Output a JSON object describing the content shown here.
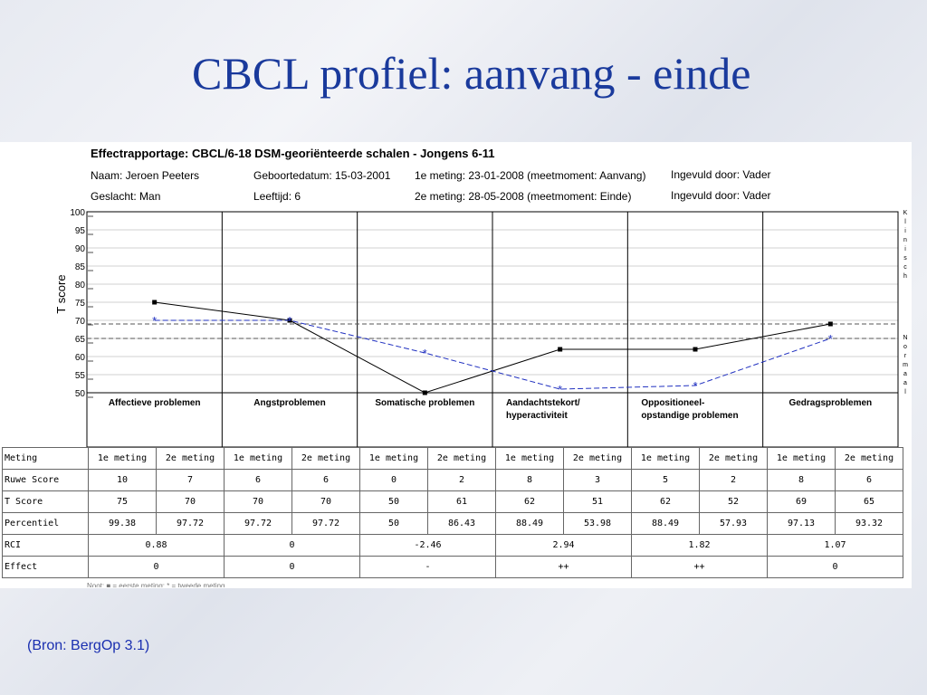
{
  "slide": {
    "title": "CBCL profiel: aanvang - einde",
    "source": "(Bron: BergOp 3.1)"
  },
  "report": {
    "title": "Effectrapportage: CBCL/6-18 DSM-georiënteerde schalen - Jongens 6-11",
    "naam": "Naam: Jeroen Peeters",
    "geboortedatum": "Geboortedatum: 15-03-2001",
    "meting1": "1e meting: 23-01-2008 (meetmoment: Aanvang)",
    "ingevuld1": "Ingevuld door: Vader",
    "geslacht": "Geslacht: Man",
    "leeftijd": "Leeftijd: 6",
    "meting2": "2e meting: 28-05-2008 (meetmoment: Einde)",
    "ingevuld2": "Ingevuld door: Vader",
    "footnote": "Noot: ■ = eerste meting; * = tweede meting"
  },
  "chart_data": {
    "type": "line",
    "ylabel": "T score",
    "ylim": [
      50,
      100
    ],
    "yticks": [
      "50",
      "55",
      "60",
      "65",
      "70",
      "75",
      "80",
      "85",
      "90",
      "95",
      "100"
    ],
    "categories": [
      "Affectieve problemen",
      "Angstproblemen",
      "Somatische problemen",
      "Aandachtstekort/ hyperactiviteit",
      "Oppositioneel- opstandige problemen",
      "Gedragsproblemen"
    ],
    "series": [
      {
        "values": [
          75,
          70,
          50,
          62,
          62,
          69
        ],
        "color": "#000000",
        "marker": "square"
      },
      {
        "values": [
          70,
          70,
          61,
          51,
          52,
          65
        ],
        "color": "#2030c0",
        "marker": "asterisk"
      }
    ],
    "reference_lines": [
      65,
      69
    ],
    "right_labels": [
      "Klinisch",
      "Normaal"
    ]
  },
  "table": {
    "row_labels": [
      "Meting",
      "Ruwe Score",
      "T Score",
      "Percentiel",
      "RCI",
      "Effect"
    ],
    "meting": [
      "1e meting",
      "2e meting",
      "1e meting",
      "2e meting",
      "1e meting",
      "2e meting",
      "1e meting",
      "2e meting",
      "1e meting",
      "2e meting",
      "1e meting",
      "2e meting"
    ],
    "ruwe": [
      "10",
      "7",
      "6",
      "6",
      "0",
      "2",
      "8",
      "3",
      "5",
      "2",
      "8",
      "6"
    ],
    "tscore": [
      "75",
      "70",
      "70",
      "70",
      "50",
      "61",
      "62",
      "51",
      "62",
      "52",
      "69",
      "65"
    ],
    "percentiel": [
      "99.38",
      "97.72",
      "97.72",
      "97.72",
      "50",
      "86.43",
      "88.49",
      "53.98",
      "88.49",
      "57.93",
      "97.13",
      "93.32"
    ],
    "rci": [
      "0.88",
      "0",
      "-2.46",
      "2.94",
      "1.82",
      "1.07"
    ],
    "effect": [
      "0",
      "0",
      "-",
      "++",
      "++",
      "0"
    ]
  }
}
